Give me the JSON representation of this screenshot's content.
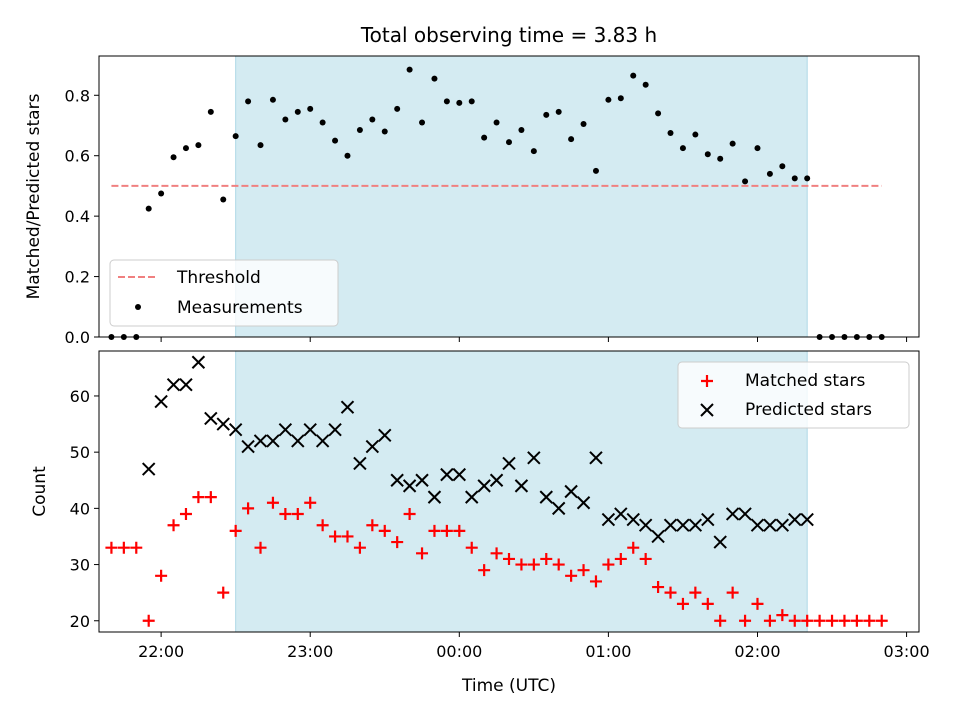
{
  "title": "Total observing time = 3.83 h",
  "colors": {
    "shade": "#add8e6",
    "threshold": "#f08080",
    "measurement": "#000000",
    "matched": "#ff0000",
    "predicted": "#000000"
  },
  "chart_data": [
    {
      "type": "scatter",
      "panel": "top",
      "title": "Total observing time = 3.83 h",
      "xlabel": "",
      "ylabel": "Matched/Predicted stars",
      "xlim": [
        "21:35",
        "03:05"
      ],
      "ylim": [
        0,
        0.93
      ],
      "yticks": [
        0.0,
        0.2,
        0.4,
        0.6,
        0.8
      ],
      "ytick_labels": [
        "0.0",
        "0.2",
        "0.4",
        "0.6",
        "0.8"
      ],
      "shaded_span": [
        "22:30",
        "02:20"
      ],
      "threshold": {
        "name": "Threshold",
        "value": 0.5,
        "x_start": "21:40",
        "x_end": "02:50"
      },
      "legend": {
        "position": "lower-left",
        "entries": [
          "Threshold",
          "Measurements"
        ]
      },
      "series": [
        {
          "name": "Measurements",
          "marker": "dot",
          "points": [
            [
              "21:40",
              0
            ],
            [
              "21:45",
              0
            ],
            [
              "21:50",
              0
            ],
            [
              "21:55",
              0.425
            ],
            [
              "22:00",
              0.475
            ],
            [
              "22:05",
              0.595
            ],
            [
              "22:10",
              0.625
            ],
            [
              "22:15",
              0.635
            ],
            [
              "22:20",
              0.745
            ],
            [
              "22:25",
              0.455
            ],
            [
              "22:30",
              0.665
            ],
            [
              "22:35",
              0.78
            ],
            [
              "22:40",
              0.635
            ],
            [
              "22:45",
              0.785
            ],
            [
              "22:50",
              0.72
            ],
            [
              "22:55",
              0.745
            ],
            [
              "23:00",
              0.755
            ],
            [
              "23:05",
              0.71
            ],
            [
              "23:10",
              0.65
            ],
            [
              "23:15",
              0.6
            ],
            [
              "23:20",
              0.685
            ],
            [
              "23:25",
              0.72
            ],
            [
              "23:30",
              0.68
            ],
            [
              "23:35",
              0.755
            ],
            [
              "23:40",
              0.885
            ],
            [
              "23:45",
              0.71
            ],
            [
              "23:50",
              0.855
            ],
            [
              "23:55",
              0.78
            ],
            [
              "00:00",
              0.775
            ],
            [
              "00:05",
              0.78
            ],
            [
              "00:10",
              0.66
            ],
            [
              "00:15",
              0.71
            ],
            [
              "00:20",
              0.645
            ],
            [
              "00:25",
              0.685
            ],
            [
              "00:30",
              0.615
            ],
            [
              "00:35",
              0.735
            ],
            [
              "00:40",
              0.745
            ],
            [
              "00:45",
              0.655
            ],
            [
              "00:50",
              0.705
            ],
            [
              "00:55",
              0.55
            ],
            [
              "01:00",
              0.785
            ],
            [
              "01:05",
              0.79
            ],
            [
              "01:10",
              0.865
            ],
            [
              "01:15",
              0.835
            ],
            [
              "01:20",
              0.74
            ],
            [
              "01:25",
              0.675
            ],
            [
              "01:30",
              0.625
            ],
            [
              "01:35",
              0.67
            ],
            [
              "01:40",
              0.605
            ],
            [
              "01:45",
              0.59
            ],
            [
              "01:50",
              0.64
            ],
            [
              "01:55",
              0.515
            ],
            [
              "02:00",
              0.625
            ],
            [
              "02:05",
              0.54
            ],
            [
              "02:10",
              0.565
            ],
            [
              "02:15",
              0.525
            ],
            [
              "02:20",
              0.525
            ],
            [
              "02:25",
              0
            ],
            [
              "02:30",
              0
            ],
            [
              "02:35",
              0
            ],
            [
              "02:40",
              0
            ],
            [
              "02:45",
              0
            ],
            [
              "02:50",
              0
            ]
          ]
        }
      ]
    },
    {
      "type": "scatter",
      "panel": "bottom",
      "xlabel": "Time (UTC)",
      "ylabel": "Count",
      "xlim": [
        "21:35",
        "03:05"
      ],
      "ylim": [
        18,
        68
      ],
      "yticks": [
        20,
        30,
        40,
        50,
        60
      ],
      "ytick_labels": [
        "20",
        "30",
        "40",
        "50",
        "60"
      ],
      "xticks": [
        "22:00",
        "23:00",
        "00:00",
        "01:00",
        "02:00",
        "03:00"
      ],
      "shaded_span": [
        "22:30",
        "02:20"
      ],
      "legend": {
        "position": "top-right",
        "entries": [
          "Matched stars",
          "Predicted stars"
        ]
      },
      "series": [
        {
          "name": "Matched stars",
          "marker": "plus",
          "points": [
            [
              "21:40",
              33
            ],
            [
              "21:45",
              33
            ],
            [
              "21:50",
              33
            ],
            [
              "21:55",
              20
            ],
            [
              "22:00",
              28
            ],
            [
              "22:05",
              37
            ],
            [
              "22:10",
              39
            ],
            [
              "22:15",
              42
            ],
            [
              "22:20",
              42
            ],
            [
              "22:25",
              25
            ],
            [
              "22:30",
              36
            ],
            [
              "22:35",
              40
            ],
            [
              "22:40",
              33
            ],
            [
              "22:45",
              41
            ],
            [
              "22:50",
              39
            ],
            [
              "22:55",
              39
            ],
            [
              "23:00",
              41
            ],
            [
              "23:05",
              37
            ],
            [
              "23:10",
              35
            ],
            [
              "23:15",
              35
            ],
            [
              "23:20",
              33
            ],
            [
              "23:25",
              37
            ],
            [
              "23:30",
              36
            ],
            [
              "23:35",
              34
            ],
            [
              "23:40",
              39
            ],
            [
              "23:45",
              32
            ],
            [
              "23:50",
              36
            ],
            [
              "23:55",
              36
            ],
            [
              "00:00",
              36
            ],
            [
              "00:05",
              33
            ],
            [
              "00:10",
              29
            ],
            [
              "00:15",
              32
            ],
            [
              "00:20",
              31
            ],
            [
              "00:25",
              30
            ],
            [
              "00:30",
              30
            ],
            [
              "00:35",
              31
            ],
            [
              "00:40",
              30
            ],
            [
              "00:45",
              28
            ],
            [
              "00:50",
              29
            ],
            [
              "00:55",
              27
            ],
            [
              "01:00",
              30
            ],
            [
              "01:05",
              31
            ],
            [
              "01:10",
              33
            ],
            [
              "01:15",
              31
            ],
            [
              "01:20",
              26
            ],
            [
              "01:25",
              25
            ],
            [
              "01:30",
              23
            ],
            [
              "01:35",
              25
            ],
            [
              "01:40",
              23
            ],
            [
              "01:45",
              20
            ],
            [
              "01:50",
              25
            ],
            [
              "01:55",
              20
            ],
            [
              "02:00",
              23
            ],
            [
              "02:05",
              20
            ],
            [
              "02:10",
              21
            ],
            [
              "02:15",
              20
            ],
            [
              "02:20",
              20
            ],
            [
              "02:25",
              20
            ],
            [
              "02:30",
              20
            ],
            [
              "02:35",
              20
            ],
            [
              "02:40",
              20
            ],
            [
              "02:45",
              20
            ],
            [
              "02:50",
              20
            ]
          ]
        },
        {
          "name": "Predicted stars",
          "marker": "x",
          "points": [
            [
              "21:55",
              47
            ],
            [
              "22:00",
              59
            ],
            [
              "22:05",
              62
            ],
            [
              "22:10",
              62
            ],
            [
              "22:15",
              66
            ],
            [
              "22:20",
              56
            ],
            [
              "22:25",
              55
            ],
            [
              "22:30",
              54
            ],
            [
              "22:35",
              51
            ],
            [
              "22:40",
              52
            ],
            [
              "22:45",
              52
            ],
            [
              "22:50",
              54
            ],
            [
              "22:55",
              52
            ],
            [
              "23:00",
              54
            ],
            [
              "23:05",
              52
            ],
            [
              "23:10",
              54
            ],
            [
              "23:15",
              58
            ],
            [
              "23:20",
              48
            ],
            [
              "23:25",
              51
            ],
            [
              "23:30",
              53
            ],
            [
              "23:35",
              45
            ],
            [
              "23:40",
              44
            ],
            [
              "23:45",
              45
            ],
            [
              "23:50",
              42
            ],
            [
              "23:55",
              46
            ],
            [
              "00:00",
              46
            ],
            [
              "00:05",
              42
            ],
            [
              "00:10",
              44
            ],
            [
              "00:15",
              45
            ],
            [
              "00:20",
              48
            ],
            [
              "00:25",
              44
            ],
            [
              "00:30",
              49
            ],
            [
              "00:35",
              42
            ],
            [
              "00:40",
              40
            ],
            [
              "00:45",
              43
            ],
            [
              "00:50",
              41
            ],
            [
              "00:55",
              49
            ],
            [
              "01:00",
              38
            ],
            [
              "01:05",
              39
            ],
            [
              "01:10",
              38
            ],
            [
              "01:15",
              37
            ],
            [
              "01:20",
              35
            ],
            [
              "01:25",
              37
            ],
            [
              "01:30",
              37
            ],
            [
              "01:35",
              37
            ],
            [
              "01:40",
              38
            ],
            [
              "01:45",
              34
            ],
            [
              "01:50",
              39
            ],
            [
              "01:55",
              39
            ],
            [
              "02:00",
              37
            ],
            [
              "02:05",
              37
            ],
            [
              "02:10",
              37
            ],
            [
              "02:15",
              38
            ],
            [
              "02:20",
              38
            ]
          ]
        }
      ]
    }
  ]
}
